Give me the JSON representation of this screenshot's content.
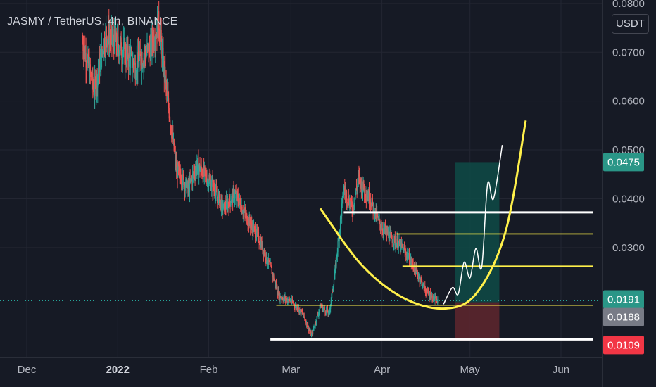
{
  "header": {
    "title": "JASMY / TetherUS, 4h, BINANCE",
    "currency": "USDT"
  },
  "colors": {
    "background": "#161a25",
    "grid": "#232632",
    "up": "#26a69a",
    "down": "#ef5350",
    "yellow": "#fff04a",
    "white": "#ffffff",
    "target_zone": "#0e4b46",
    "stop_zone": "#5b262d",
    "label_green": "#2a9687",
    "label_grey": "#787b86",
    "label_red": "#f23645"
  },
  "chart_data": {
    "type": "candlestick",
    "symbol": "JASMY / TetherUS",
    "timeframe": "4h",
    "exchange": "BINANCE",
    "y_range": [
      0.0075,
      0.0807
    ],
    "y_ticks": [
      "0.0300",
      "0.0400",
      "0.0500",
      "0.0600",
      "0.0700",
      "0.0800"
    ],
    "x_ticks": [
      {
        "label": "Dec",
        "date": "2021-12-01",
        "bold": false
      },
      {
        "label": "2022",
        "date": "2022-01-01",
        "bold": true
      },
      {
        "label": "Feb",
        "date": "2022-02-01",
        "bold": false
      },
      {
        "label": "Mar",
        "date": "2022-03-01",
        "bold": false
      },
      {
        "label": "Apr",
        "date": "2022-04-01",
        "bold": false
      },
      {
        "label": "May",
        "date": "2022-05-01",
        "bold": false
      },
      {
        "label": "Jun",
        "date": "2022-06-01",
        "bold": false
      }
    ],
    "price_path": [
      [
        "2021-12-20",
        0.072
      ],
      [
        "2021-12-24",
        0.062
      ],
      [
        "2021-12-28",
        0.074
      ],
      [
        "2022-01-02",
        0.071
      ],
      [
        "2022-01-07",
        0.067
      ],
      [
        "2022-01-12",
        0.071
      ],
      [
        "2022-01-15",
        0.076
      ],
      [
        "2022-01-17",
        0.065
      ],
      [
        "2022-01-21",
        0.046
      ],
      [
        "2022-01-25",
        0.042
      ],
      [
        "2022-01-28",
        0.047
      ],
      [
        "2022-02-02",
        0.043
      ],
      [
        "2022-02-06",
        0.038
      ],
      [
        "2022-02-10",
        0.041
      ],
      [
        "2022-02-14",
        0.036
      ],
      [
        "2022-02-18",
        0.032
      ],
      [
        "2022-02-22",
        0.026
      ],
      [
        "2022-02-25",
        0.02
      ],
      [
        "2022-03-01",
        0.019
      ],
      [
        "2022-03-05",
        0.0165
      ],
      [
        "2022-03-08",
        0.012
      ],
      [
        "2022-03-11",
        0.018
      ],
      [
        "2022-03-14",
        0.0165
      ],
      [
        "2022-03-16",
        0.025
      ],
      [
        "2022-03-19",
        0.042
      ],
      [
        "2022-03-22",
        0.038
      ],
      [
        "2022-03-24",
        0.044
      ],
      [
        "2022-03-28",
        0.04
      ],
      [
        "2022-03-31",
        0.035
      ],
      [
        "2022-04-04",
        0.032
      ],
      [
        "2022-04-08",
        0.03
      ],
      [
        "2022-04-12",
        0.026
      ],
      [
        "2022-04-16",
        0.021
      ],
      [
        "2022-04-20",
        0.0188
      ]
    ],
    "current_price": 0.0191,
    "horizontal_levels": [
      {
        "price": 0.0372,
        "color": "white",
        "from": "2022-03-19",
        "to": "2022-06-12"
      },
      {
        "price": 0.0328,
        "color": "yellow",
        "from": "2022-04-06",
        "to": "2022-06-12"
      },
      {
        "price": 0.0262,
        "color": "yellow",
        "from": "2022-04-08",
        "to": "2022-06-12"
      },
      {
        "price": 0.0182,
        "color": "yellow",
        "from": "2022-02-24",
        "to": "2022-06-12"
      },
      {
        "price": 0.0112,
        "color": "white",
        "from": "2022-02-22",
        "to": "2022-06-12"
      }
    ],
    "cup_curve": [
      [
        "2022-03-11",
        0.038
      ],
      [
        "2022-03-25",
        0.0265
      ],
      [
        "2022-04-08",
        0.0198
      ],
      [
        "2022-04-22",
        0.0175
      ],
      [
        "2022-05-03",
        0.0205
      ],
      [
        "2022-05-13",
        0.033
      ],
      [
        "2022-05-20",
        0.056
      ]
    ],
    "projection": [
      [
        "2022-04-22",
        0.0184
      ],
      [
        "2022-04-25",
        0.0218
      ],
      [
        "2022-04-27",
        0.0205
      ],
      [
        "2022-04-29",
        0.027
      ],
      [
        "2022-05-01",
        0.0238
      ],
      [
        "2022-05-03",
        0.0298
      ],
      [
        "2022-05-05",
        0.026
      ],
      [
        "2022-05-07",
        0.043
      ],
      [
        "2022-05-09",
        0.04
      ],
      [
        "2022-05-12",
        0.051
      ]
    ],
    "position": {
      "from": "2022-04-26",
      "to": "2022-05-11",
      "entry": 0.0188,
      "target": 0.0475,
      "stop": 0.0109
    },
    "price_labels": [
      {
        "text": "0.0475",
        "price": 0.0475,
        "style": "label_green"
      },
      {
        "text": "0.0191",
        "price": 0.0191,
        "style": "label_green"
      },
      {
        "text": "0.0188",
        "price": 0.0188,
        "style": "label_grey"
      },
      {
        "text": "0.0109",
        "price": 0.0109,
        "style": "label_red"
      }
    ]
  }
}
